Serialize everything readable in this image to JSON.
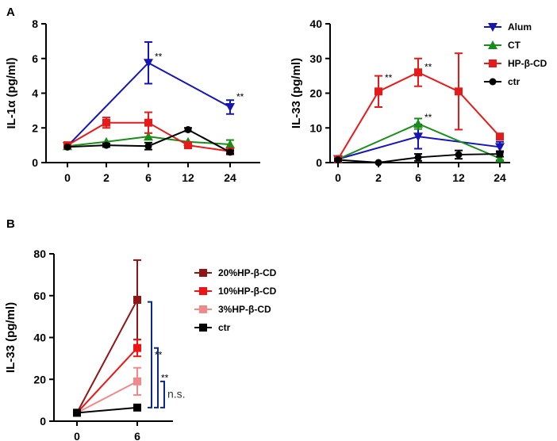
{
  "panels": {
    "a": "A",
    "b": "B"
  },
  "chart_data": [
    {
      "type": "line",
      "panel": "A-left",
      "xlabel": "",
      "ylabel": "IL-1α (pg/ml)",
      "categories": [
        "0",
        "2",
        "6",
        "12",
        "24"
      ],
      "ylim": [
        0,
        8
      ],
      "yticks": [
        0,
        2,
        4,
        6,
        8
      ],
      "series": [
        {
          "name": "Alum",
          "color": "#1515b4",
          "marker": "triangle-down",
          "points": [
            [
              0,
              0.95,
              0
            ],
            [
              2,
              null,
              0
            ],
            [
              6,
              5.75,
              1.2
            ],
            [
              12,
              null,
              0
            ],
            [
              24,
              3.2,
              0.4
            ]
          ]
        },
        {
          "name": "CT",
          "color": "#198c19",
          "marker": "triangle-up",
          "points": [
            [
              0,
              0.95,
              0
            ],
            [
              2,
              1.2,
              0
            ],
            [
              6,
              1.5,
              0
            ],
            [
              12,
              1.2,
              0
            ],
            [
              24,
              1.05,
              0.25
            ]
          ]
        },
        {
          "name": "HP-β-CD",
          "color": "#e51b1b",
          "marker": "square",
          "points": [
            [
              0,
              1.0,
              0
            ],
            [
              2,
              2.3,
              0.3
            ],
            [
              6,
              2.3,
              0.6
            ],
            [
              12,
              1.0,
              0.15
            ],
            [
              24,
              0.65,
              0.1
            ]
          ]
        },
        {
          "name": "ctr",
          "color": "#000000",
          "marker": "circle",
          "points": [
            [
              0,
              0.9,
              0
            ],
            [
              2,
              1.0,
              0.1
            ],
            [
              6,
              0.95,
              0.2
            ],
            [
              12,
              1.9,
              0.1
            ],
            [
              24,
              0.6,
              0.1
            ]
          ]
        }
      ],
      "annotations": [
        {
          "text": "**",
          "x": "6",
          "y": 6.1
        },
        {
          "text": "**",
          "x": "24",
          "y": 3.8
        }
      ]
    },
    {
      "type": "line",
      "panel": "A-right",
      "xlabel": "",
      "ylabel": "IL-33  (pg/ml)",
      "categories": [
        "0",
        "2",
        "6",
        "12",
        "24"
      ],
      "ylim": [
        0,
        40
      ],
      "yticks": [
        0,
        10,
        20,
        30,
        40
      ],
      "legend_position": "right",
      "series": [
        {
          "name": "Alum",
          "color": "#1515b4",
          "marker": "triangle-down",
          "points": [
            [
              0,
              1.0,
              0
            ],
            [
              2,
              null,
              0
            ],
            [
              6,
              7.5,
              3.5
            ],
            [
              12,
              null,
              0
            ],
            [
              24,
              4.5,
              1.5
            ]
          ]
        },
        {
          "name": "CT",
          "color": "#198c19",
          "marker": "triangle-up",
          "points": [
            [
              0,
              1.0,
              0
            ],
            [
              2,
              null,
              0
            ],
            [
              6,
              11.2,
              1.5
            ],
            [
              12,
              null,
              0
            ],
            [
              24,
              1.2,
              0.5
            ]
          ]
        },
        {
          "name": "HP-β-CD",
          "color": "#e51b1b",
          "marker": "square",
          "points": [
            [
              0,
              1.0,
              0
            ],
            [
              2,
              20.5,
              4.5
            ],
            [
              6,
              26.0,
              4.0
            ],
            [
              12,
              20.5,
              11.0
            ],
            [
              24,
              7.5,
              0.5
            ]
          ]
        },
        {
          "name": "ctr",
          "color": "#000000",
          "marker": "circle",
          "points": [
            [
              0,
              0.8,
              0.3
            ],
            [
              2,
              0.0,
              0
            ],
            [
              6,
              1.5,
              1.0
            ],
            [
              12,
              2.3,
              1.2
            ],
            [
              24,
              2.5,
              0.8
            ]
          ]
        }
      ],
      "annotations": [
        {
          "text": "**",
          "x": "2",
          "y": 24.5
        },
        {
          "text": "**",
          "x": "6",
          "y": 27.5
        },
        {
          "text": "**",
          "x": "6",
          "y": 13.0
        }
      ]
    },
    {
      "type": "line",
      "panel": "B",
      "xlabel": "",
      "ylabel": "IL-33  (pg/ml)",
      "categories": [
        "0",
        "6"
      ],
      "ylim": [
        0,
        80
      ],
      "yticks": [
        0,
        20,
        40,
        60,
        80
      ],
      "legend_position": "right",
      "series": [
        {
          "name": "20%HP-β-CD",
          "color": "#8e1616",
          "marker": "square",
          "points": [
            [
              0,
              4.0,
              0
            ],
            [
              6,
              58.0,
              19.0
            ]
          ]
        },
        {
          "name": "10%HP-β-CD",
          "color": "#ee1414",
          "marker": "square",
          "points": [
            [
              0,
              4.0,
              0
            ],
            [
              6,
              35.0,
              4.0
            ]
          ]
        },
        {
          "name": "  3%HP-β-CD",
          "color": "#f08a8a",
          "marker": "square",
          "points": [
            [
              0,
              4.0,
              0
            ],
            [
              6,
              19.0,
              6.5
            ]
          ]
        },
        {
          "name": "ctr",
          "color": "#000000",
          "marker": "square",
          "points": [
            [
              0,
              4.0,
              0
            ],
            [
              6,
              6.5,
              0
            ]
          ]
        }
      ],
      "brackets": [
        {
          "label": "**",
          "from": 57.0,
          "to": 6.5
        },
        {
          "label": "**",
          "from": 35.0,
          "to": 6.5
        },
        {
          "label": "n.s.",
          "from": 19.0,
          "to": 6.5
        }
      ],
      "bracket_color": "#0a2a8a"
    }
  ]
}
